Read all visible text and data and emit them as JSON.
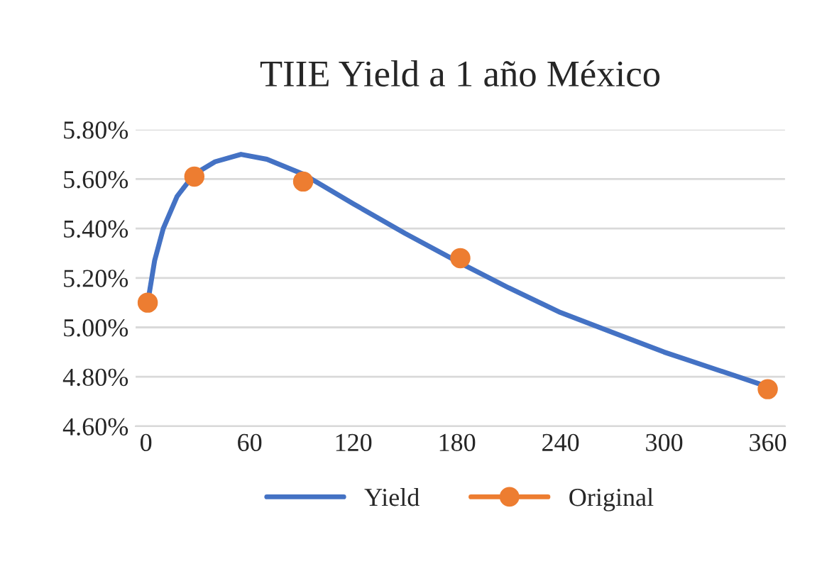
{
  "chart_data": {
    "type": "line",
    "title": "TIIE Yield a 1 año México",
    "series": [
      {
        "name": "Yield",
        "color": "#4472c4",
        "marker": "none",
        "x": [
          1,
          5,
          10,
          18,
          28,
          40,
          55,
          70,
          91,
          120,
          150,
          182,
          210,
          240,
          270,
          300,
          330,
          360
        ],
        "values": [
          5.1,
          5.27,
          5.4,
          5.53,
          5.62,
          5.67,
          5.7,
          5.68,
          5.62,
          5.5,
          5.38,
          5.26,
          5.16,
          5.06,
          4.98,
          4.9,
          4.83,
          4.76
        ]
      },
      {
        "name": "Original",
        "type": "scatter",
        "color": "#ed7d31",
        "marker": "circle",
        "x": [
          1,
          28,
          91,
          182,
          360
        ],
        "values": [
          5.1,
          5.61,
          5.59,
          5.28,
          4.75
        ]
      }
    ],
    "xlim": [
      -6,
      370
    ],
    "xticks": [
      0,
      60,
      120,
      180,
      240,
      300,
      360
    ],
    "ylim": [
      4.6,
      5.8
    ],
    "yticks": [
      {
        "value": 4.6,
        "label": "4.60%"
      },
      {
        "value": 4.8,
        "label": "4.80%"
      },
      {
        "value": 5.0,
        "label": "5.00%"
      },
      {
        "value": 5.2,
        "label": "5.20%"
      },
      {
        "value": 5.4,
        "label": "5.40%"
      },
      {
        "value": 5.6,
        "label": "5.60%"
      },
      {
        "value": 5.8,
        "label": "5.80%"
      }
    ],
    "grid": "y",
    "legend": "bottom"
  }
}
